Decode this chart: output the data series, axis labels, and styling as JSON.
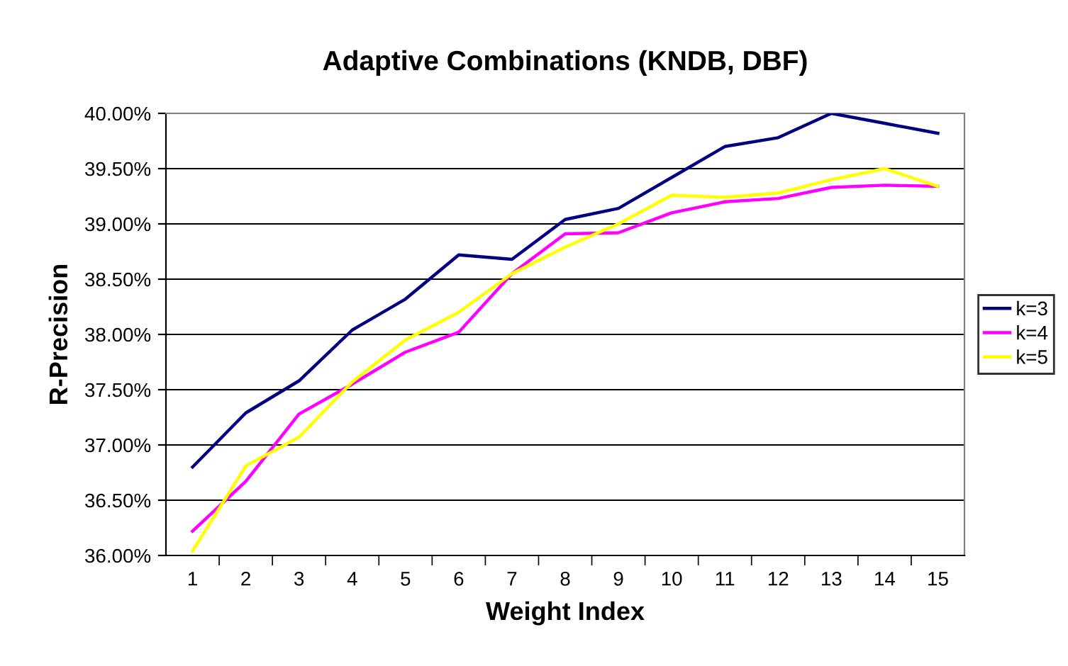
{
  "chart_data": {
    "type": "line",
    "title": "Adaptive Combinations (KNDB, DBF)",
    "xlabel": "Weight Index",
    "ylabel": "R-Precision",
    "categories": [
      "1",
      "2",
      "3",
      "4",
      "5",
      "6",
      "7",
      "8",
      "9",
      "10",
      "11",
      "12",
      "13",
      "14",
      "15"
    ],
    "series": [
      {
        "name": "k=3",
        "color": "#000080",
        "values": [
          36.8,
          37.29,
          37.58,
          38.04,
          38.32,
          38.72,
          38.68,
          39.04,
          39.14,
          39.42,
          39.7,
          39.78,
          40.0,
          39.91,
          39.82
        ]
      },
      {
        "name": "k=4",
        "color": "#ff00ff",
        "values": [
          36.22,
          36.67,
          37.28,
          37.55,
          37.84,
          38.02,
          38.55,
          38.91,
          38.92,
          39.1,
          39.2,
          39.23,
          39.33,
          39.35,
          39.34
        ]
      },
      {
        "name": "k=5",
        "color": "#ffff00",
        "values": [
          36.04,
          36.81,
          37.07,
          37.57,
          37.95,
          38.2,
          38.55,
          38.79,
          39.0,
          39.26,
          39.24,
          39.28,
          39.4,
          39.5,
          39.34
        ]
      }
    ],
    "ylim": [
      36,
      40
    ],
    "yticks": [
      {
        "value": 36,
        "label": "36.00%"
      },
      {
        "value": 36.5,
        "label": "36.50%"
      },
      {
        "value": 37,
        "label": "37.00%"
      },
      {
        "value": 37.5,
        "label": "37.50%"
      },
      {
        "value": 38,
        "label": "38.00%"
      },
      {
        "value": 38.5,
        "label": "38.50%"
      },
      {
        "value": 39,
        "label": "39.00%"
      },
      {
        "value": 39.5,
        "label": "39.50%"
      },
      {
        "value": 40,
        "label": "40.00%"
      }
    ],
    "grid": "y",
    "legend": "right",
    "marker": "none",
    "line_style": "solid"
  }
}
